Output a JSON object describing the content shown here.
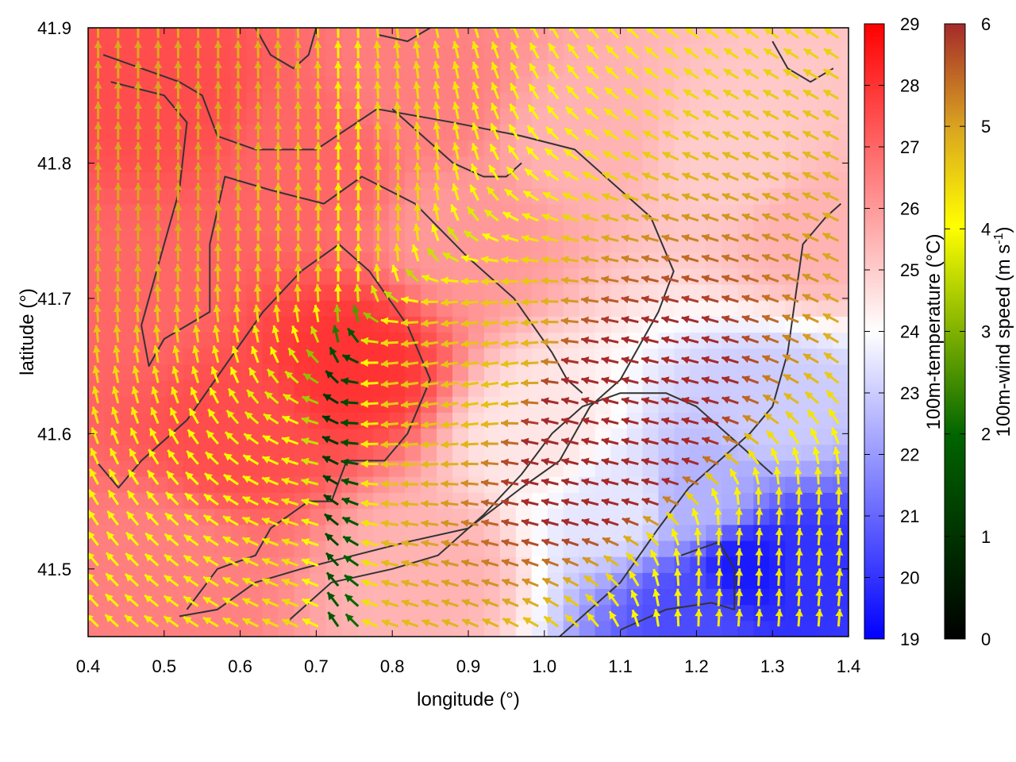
{
  "chart_data": {
    "type": "heatmap",
    "title": "",
    "xlabel": "longitude (°)",
    "ylabel": "latitude (°)",
    "xlim": [
      0.4,
      1.4
    ],
    "ylim": [
      41.45,
      41.9
    ],
    "x_ticks": [
      "0.4",
      "0.5",
      "0.6",
      "0.7",
      "0.8",
      "0.9",
      "1.0",
      "1.1",
      "1.2",
      "1.3",
      "1.4"
    ],
    "y_ticks": [
      "41.5",
      "41.6",
      "41.7",
      "41.8",
      "41.9"
    ],
    "grid": false,
    "legend": "none",
    "temperature_colorbar": {
      "label": "100m-temperature (°C)",
      "range": [
        19,
        29
      ],
      "ticks": [
        "19",
        "20",
        "21",
        "22",
        "23",
        "24",
        "25",
        "26",
        "27",
        "28",
        "29"
      ],
      "colors": [
        "#0000ff",
        "#ffffff",
        "#ff0000"
      ]
    },
    "wind_colorbar": {
      "label_main": "100m-wind speed (m s",
      "label_sup": "-1",
      "label_end": ")",
      "range": [
        0,
        6
      ],
      "ticks": [
        "0",
        "1",
        "2",
        "3",
        "4",
        "5",
        "6"
      ],
      "colors": [
        "#000000",
        "#006400",
        "#ffff00",
        "#daa520",
        "#a52a2a"
      ]
    },
    "temperature_field": [
      {
        "lon": 0.5,
        "lat": 41.85,
        "value": 27.5
      },
      {
        "lon": 0.7,
        "lat": 41.8,
        "value": 27.0
      },
      {
        "lon": 0.75,
        "lat": 41.65,
        "value": 28.0
      },
      {
        "lon": 0.6,
        "lat": 41.6,
        "value": 27.5
      },
      {
        "lon": 0.9,
        "lat": 41.75,
        "value": 26.0
      },
      {
        "lon": 0.85,
        "lat": 41.85,
        "value": 26.5
      },
      {
        "lon": 1.05,
        "lat": 41.82,
        "value": 25.5
      },
      {
        "lon": 1.25,
        "lat": 41.8,
        "value": 25.0
      },
      {
        "lon": 1.35,
        "lat": 41.75,
        "value": 25.5
      },
      {
        "lon": 1.0,
        "lat": 41.6,
        "value": 24.5
      },
      {
        "lon": 1.1,
        "lat": 41.55,
        "value": 23.5
      },
      {
        "lon": 1.2,
        "lat": 41.55,
        "value": 22.5
      },
      {
        "lon": 1.3,
        "lat": 41.62,
        "value": 23.0
      },
      {
        "lon": 1.27,
        "lat": 41.5,
        "value": 19.5
      },
      {
        "lon": 1.2,
        "lat": 41.47,
        "value": 20.5
      },
      {
        "lon": 1.35,
        "lat": 41.5,
        "value": 20.0
      },
      {
        "lon": 0.85,
        "lat": 41.5,
        "value": 25.5
      },
      {
        "lon": 0.5,
        "lat": 41.5,
        "value": 26.5
      },
      {
        "lon": 0.45,
        "lat": 41.7,
        "value": 27.0
      }
    ],
    "wind_field": {
      "lon_range": [
        0.4,
        1.4
      ],
      "lat_range": [
        41.45,
        41.9
      ],
      "note_points": [
        {
          "lon": 0.72,
          "lat": 41.75,
          "u": 0.0,
          "v": 3.5
        },
        {
          "lon": 0.9,
          "lat": 41.65,
          "u": -3.5,
          "v": -0.5
        },
        {
          "lon": 1.3,
          "lat": 41.5,
          "u": 0.3,
          "v": 3.0
        },
        {
          "lon": 1.1,
          "lat": 41.6,
          "u": -6.0,
          "v": 1.5
        },
        {
          "lon": 0.5,
          "lat": 41.8,
          "u": 0.0,
          "v": 4.0
        }
      ]
    }
  }
}
